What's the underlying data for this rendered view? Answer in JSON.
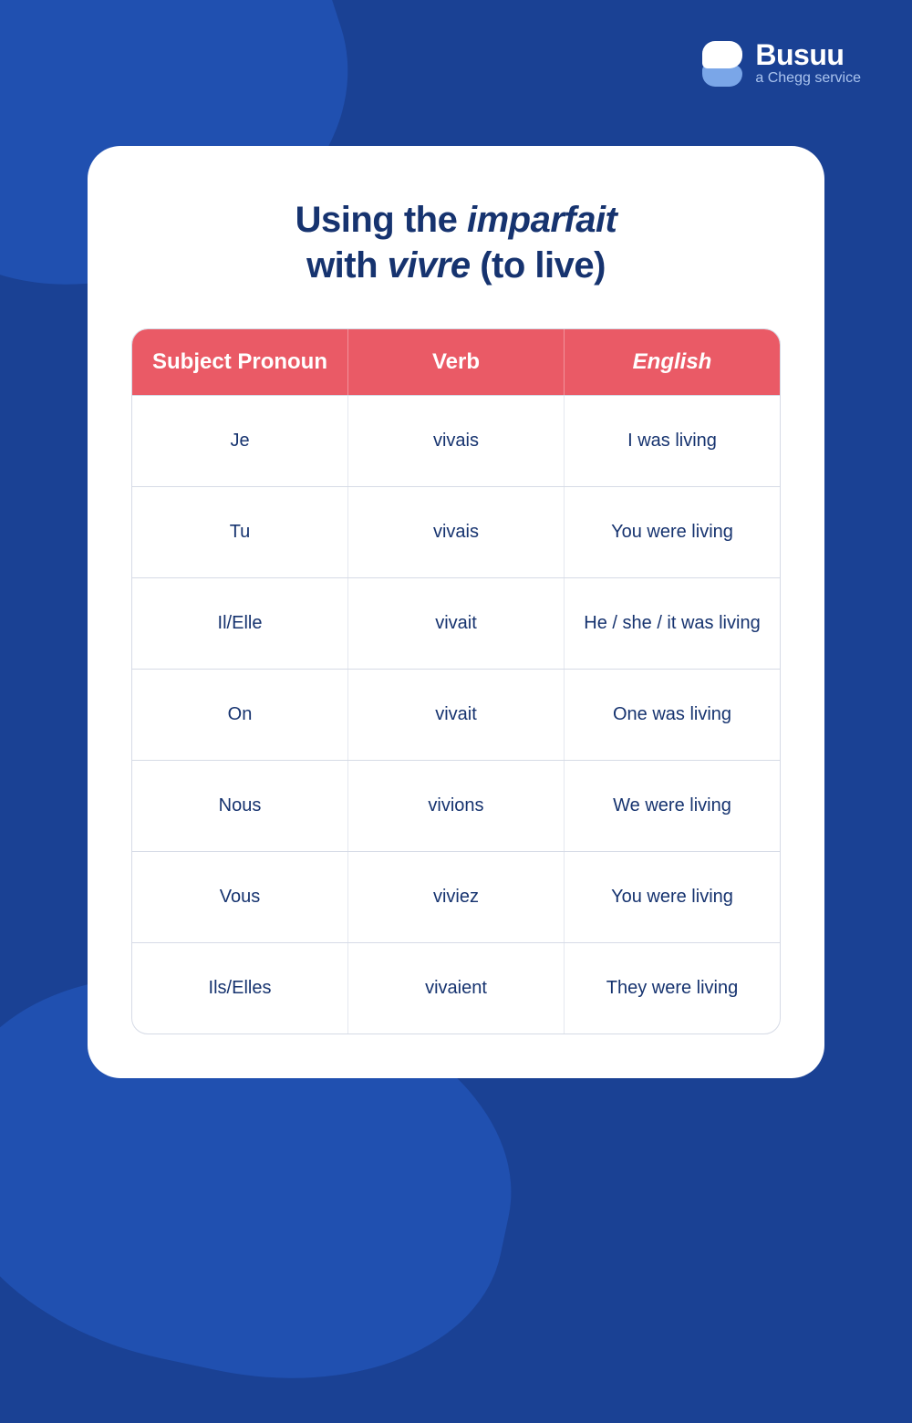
{
  "colors": {
    "page_bg": "#1a4194",
    "shape_bg": "#2050b0",
    "card_bg": "#ffffff",
    "title_color": "#16336f",
    "header_bg": "#ea5a66",
    "header_text": "#ffffff",
    "cell_text": "#16336f",
    "border_color": "#d6dbe6"
  },
  "logo": {
    "brand": "Busuu",
    "tag": "a Chegg service"
  },
  "title": {
    "line1_pre": "Using the ",
    "line1_em": "imparfait",
    "line2_pre": "with ",
    "line2_em": "vivre",
    "line2_post": " (to live)"
  },
  "table": {
    "headers": [
      "Subject Pronoun",
      "Verb",
      "English"
    ],
    "rows": [
      {
        "pronoun": "Je",
        "verb": "vivais",
        "english": "I was living"
      },
      {
        "pronoun": "Tu",
        "verb": "vivais",
        "english": "You were living"
      },
      {
        "pronoun": "Il/Elle",
        "verb": "vivait",
        "english": "He / she / it was living"
      },
      {
        "pronoun": "On",
        "verb": "vivait",
        "english": "One was living"
      },
      {
        "pronoun": "Nous",
        "verb": "vivions",
        "english": "We were living"
      },
      {
        "pronoun": "Vous",
        "verb": "viviez",
        "english": "You were living"
      },
      {
        "pronoun": "Ils/Elles",
        "verb": "vivaient",
        "english": "They were living"
      }
    ]
  }
}
